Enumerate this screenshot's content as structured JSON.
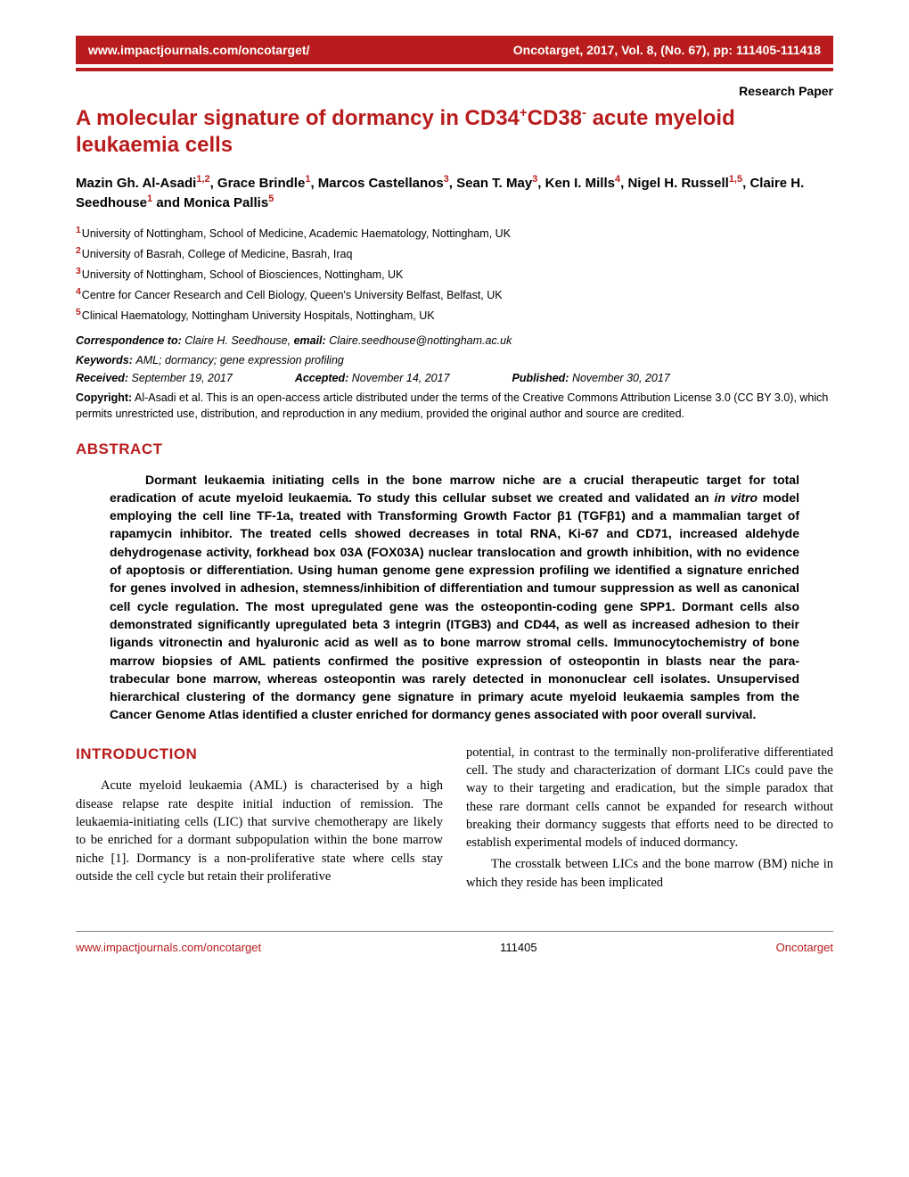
{
  "header": {
    "url": "www.impactjournals.com/oncotarget/",
    "citation": "Oncotarget, 2017, Vol. 8, (No. 67), pp: 111405-111418"
  },
  "paper_type": "Research Paper",
  "title_parts": {
    "prefix": "A molecular signature of dormancy in CD34",
    "sup1": "+",
    "mid": "CD38",
    "sup2": "-",
    "suffix": " acute myeloid leukaemia cells"
  },
  "authors_html": "Mazin Gh. Al-Asadi<sup>1,2</sup>, Grace Brindle<sup>1</sup>, Marcos Castellanos<sup>3</sup>, Sean T. May<sup>3</sup>, Ken I. Mills<sup>4</sup>, Nigel H. Russell<sup>1,5</sup>, Claire H. Seedhouse<sup>1</sup> and Monica Pallis<sup>5</sup>",
  "affiliations": [
    {
      "num": "1",
      "text": "University of Nottingham, School of Medicine, Academic Haematology, Nottingham, UK"
    },
    {
      "num": "2",
      "text": "University of Basrah, College of Medicine, Basrah, Iraq"
    },
    {
      "num": "3",
      "text": "University of Nottingham, School of Biosciences, Nottingham, UK"
    },
    {
      "num": "4",
      "text": "Centre for Cancer Research and Cell Biology, Queen's University Belfast, Belfast, UK"
    },
    {
      "num": "5",
      "text": "Clinical Haematology, Nottingham University Hospitals, Nottingham, UK"
    }
  ],
  "correspondence": {
    "label": "Correspondence to:",
    "name": "Claire H. Seedhouse,",
    "email_label": "email:",
    "email": "Claire.seedhouse@nottingham.ac.uk"
  },
  "keywords": {
    "label": "Keywords:",
    "text": "AML; dormancy; gene expression profiling"
  },
  "dates": {
    "received_label": "Received:",
    "received": "September 19, 2017",
    "accepted_label": "Accepted:",
    "accepted": "November 14, 2017",
    "published_label": "Published:",
    "published": "November 30, 2017"
  },
  "copyright": {
    "label": "Copyright:",
    "text": "Al-Asadi et al. This is an open-access article distributed under the terms of the Creative Commons Attribution License 3.0 (CC BY 3.0), which permits unrestricted use, distribution, and reproduction in any medium, provided the original author and source are credited."
  },
  "abstract": {
    "heading": "ABSTRACT",
    "text_pre": "Dormant leukaemia initiating cells in the bone marrow niche are a crucial therapeutic target for total eradication of acute myeloid leukaemia. To study this cellular subset we created and validated an ",
    "italic1": "in vitro",
    "text_post": " model employing the cell line TF-1a, treated with Transforming Growth Factor β1 (TGFβ1) and a mammalian target of rapamycin inhibitor. The treated cells showed decreases in total RNA, Ki-67 and CD71, increased aldehyde dehydrogenase activity, forkhead box 03A (FOX03A) nuclear translocation and growth inhibition, with no evidence of apoptosis or differentiation. Using human genome gene expression profiling we identified a signature enriched for genes involved in adhesion, stemness/inhibition of differentiation and tumour suppression as well as canonical cell cycle regulation. The most upregulated gene was the osteopontin-coding gene SPP1. Dormant cells also demonstrated significantly upregulated beta 3 integrin (ITGB3) and CD44, as well as increased adhesion to their ligands vitronectin and hyaluronic acid as well as to bone marrow stromal cells. Immunocytochemistry of bone marrow biopsies of AML patients confirmed the positive expression of osteopontin in blasts near the para-trabecular bone marrow, whereas osteopontin was rarely detected in mononuclear cell isolates. Unsupervised hierarchical clustering of the dormancy gene signature in primary acute myeloid leukaemia samples from the Cancer Genome Atlas identified a cluster enriched for dormancy genes associated with poor overall survival."
  },
  "introduction": {
    "heading": "INTRODUCTION",
    "col1_p1": "Acute myeloid leukaemia (AML) is characterised by a high disease relapse rate despite initial induction of remission. The leukaemia-initiating cells (LIC) that survive chemotherapy are likely to be enriched for a dormant subpopulation within the bone marrow niche [1]. Dormancy is a non-proliferative state where cells stay outside the cell cycle but retain their proliferative",
    "col2_p1": "potential, in contrast to the terminally non-proliferative differentiated cell. The study and characterization of dormant LICs could pave the way to their targeting and eradication, but the simple paradox that these rare dormant cells cannot be expanded for research without breaking their dormancy suggests that efforts need to be directed to establish experimental models of induced dormancy.",
    "col2_p2": "The crosstalk between LICs and the bone marrow (BM) niche in which they reside has been implicated"
  },
  "footer": {
    "url": "www.impactjournals.com/oncotarget",
    "page": "111405",
    "journal": "Oncotarget"
  },
  "colors": {
    "brand_red": "#b91c1c",
    "text": "#000000",
    "background": "#ffffff",
    "rule": "#808080"
  }
}
